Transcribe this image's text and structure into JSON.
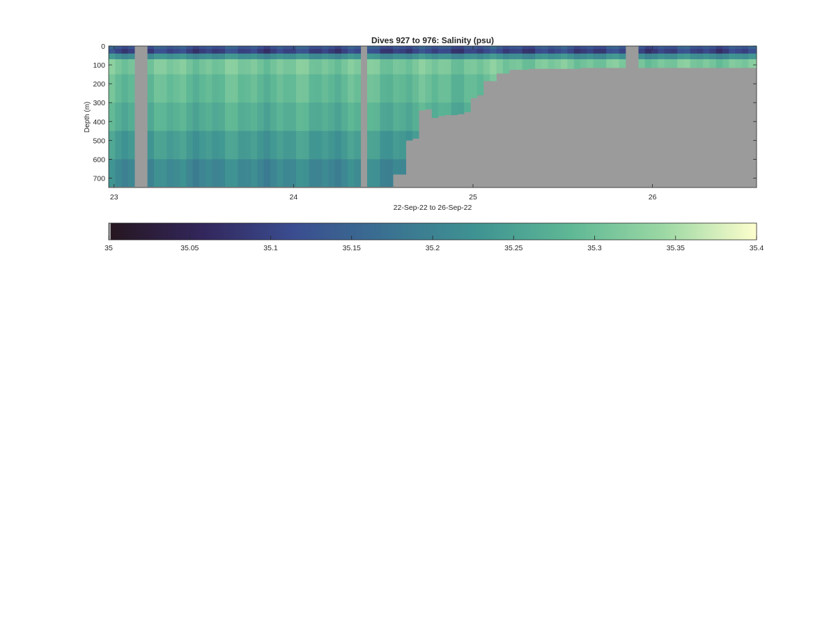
{
  "chart_data": {
    "type": "heatmap",
    "title": "Dives 927 to 976: Salinity (psu)",
    "xlabel": "22-Sep-22 to 26-Sep-22",
    "ylabel": "Depth (m)",
    "x_unit": "day of Sep-2022",
    "xlim": [
      22.97,
      26.58
    ],
    "ylim": [
      0,
      750
    ],
    "y_reversed": true,
    "x_ticks": [
      23,
      24,
      25,
      26
    ],
    "x_tick_labels": [
      "23",
      "24",
      "25",
      "26"
    ],
    "y_ticks": [
      0,
      100,
      200,
      300,
      400,
      500,
      600,
      700
    ],
    "y_tick_labels": [
      "0",
      "100",
      "200",
      "300",
      "400",
      "500",
      "600",
      "700"
    ],
    "colormap": [
      "#26161f",
      "#32265b",
      "#3a4d90",
      "#3a7191",
      "#3f9492",
      "#5fb895",
      "#9cd8a4",
      "#fdfecd"
    ],
    "no_data_color": "#9b9b9b",
    "colorbar": {
      "range": [
        35,
        35.4
      ],
      "ticks": [
        35,
        35.05,
        35.1,
        35.15,
        35.2,
        35.25,
        35.3,
        35.35,
        35.4
      ],
      "tick_labels": [
        "35",
        "35.05",
        "35.1",
        "35.15",
        "35.2",
        "35.25",
        "35.3",
        "35.35",
        "35.4"
      ]
    },
    "gaps": [
      {
        "from": 23.12,
        "to": 23.19
      },
      {
        "from": 24.38,
        "to": 24.42
      },
      {
        "from": 25.86,
        "to": 25.92
      }
    ],
    "max_depth_profile": [
      {
        "from": 22.97,
        "to": 24.54,
        "depth": 745
      },
      {
        "from": 24.54,
        "to": 24.62,
        "depth": 680
      },
      {
        "from": 24.62,
        "to": 24.65,
        "depth": 500
      },
      {
        "from": 24.65,
        "to": 24.7,
        "depth": 490
      },
      {
        "from": 24.7,
        "to": 24.74,
        "depth": 340
      },
      {
        "from": 24.74,
        "to": 24.78,
        "depth": 335
      },
      {
        "from": 24.78,
        "to": 24.82,
        "depth": 380
      },
      {
        "from": 24.82,
        "to": 24.86,
        "depth": 370
      },
      {
        "from": 24.86,
        "to": 24.9,
        "depth": 365
      },
      {
        "from": 24.9,
        "to": 24.95,
        "depth": 360
      },
      {
        "from": 24.95,
        "to": 24.99,
        "depth": 350
      },
      {
        "from": 24.99,
        "to": 25.04,
        "depth": 275
      },
      {
        "from": 25.04,
        "to": 25.07,
        "depth": 260
      },
      {
        "from": 25.07,
        "to": 25.14,
        "depth": 185
      },
      {
        "from": 25.14,
        "to": 25.22,
        "depth": 145
      },
      {
        "from": 25.22,
        "to": 25.3,
        "depth": 125
      },
      {
        "from": 25.3,
        "to": 25.6,
        "depth": 120
      },
      {
        "from": 25.6,
        "to": 26.58,
        "depth": 115
      }
    ],
    "profile_layers": [
      {
        "depth_from": 0,
        "depth_to": 15,
        "salinity": 35.13
      },
      {
        "depth_from": 15,
        "depth_to": 40,
        "salinity": 35.1
      },
      {
        "depth_from": 40,
        "depth_to": 70,
        "salinity": 35.22
      },
      {
        "depth_from": 70,
        "depth_to": 150,
        "salinity": 35.31
      },
      {
        "depth_from": 150,
        "depth_to": 300,
        "salinity": 35.29
      },
      {
        "depth_from": 300,
        "depth_to": 450,
        "salinity": 35.27
      },
      {
        "depth_from": 450,
        "depth_to": 600,
        "salinity": 35.24
      },
      {
        "depth_from": 600,
        "depth_to": 750,
        "salinity": 35.21
      }
    ]
  }
}
